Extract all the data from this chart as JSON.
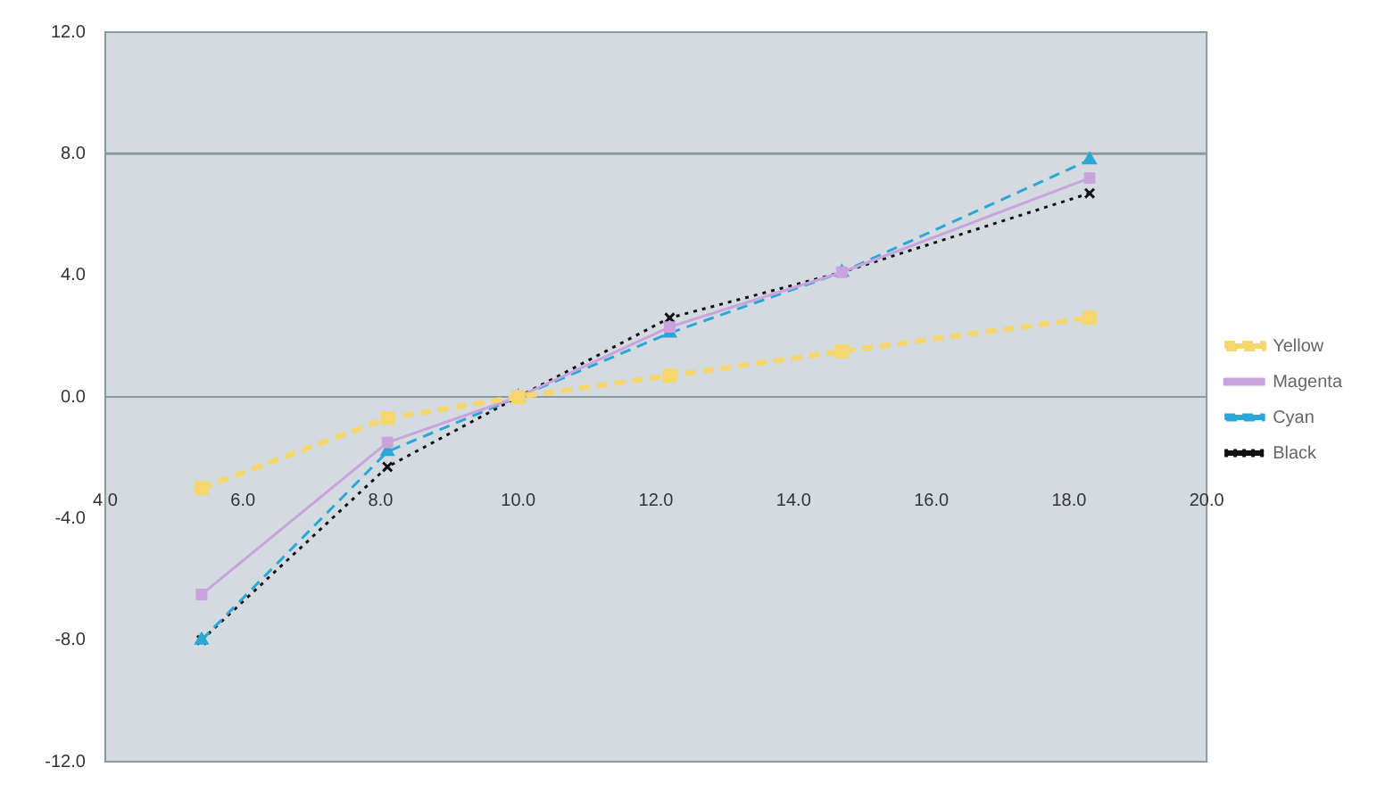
{
  "chart_data": {
    "type": "line",
    "legend": "right",
    "xlim": [
      4,
      20
    ],
    "xticks": [
      {
        "value": 4,
        "label": "4.0"
      },
      {
        "value": 6,
        "label": "6.0"
      },
      {
        "value": 8,
        "label": "8.0"
      },
      {
        "value": 10,
        "label": "10.0"
      },
      {
        "value": 12,
        "label": "12.0"
      },
      {
        "value": 14,
        "label": "14.0"
      },
      {
        "value": 16,
        "label": "16.0"
      },
      {
        "value": 18,
        "label": "18.0"
      },
      {
        "value": 20,
        "label": "20.0"
      }
    ],
    "ylim": [
      -12,
      12
    ],
    "yticks": [
      {
        "value": -12,
        "label": "-12.0"
      },
      {
        "value": -8,
        "label": "-8.0"
      },
      {
        "value": -4,
        "label": "-4.0"
      },
      {
        "value": 0,
        "label": "0.0"
      },
      {
        "value": 4,
        "label": "4.0"
      },
      {
        "value": 8,
        "label": "8.0"
      },
      {
        "value": 12,
        "label": "12.0"
      }
    ],
    "ref_lines": [
      {
        "axis": "y",
        "value": 8,
        "color": "#8a9aa3"
      }
    ],
    "x": [
      5.4,
      8.1,
      10,
      12.2,
      14.7,
      18.3
    ],
    "series": [
      {
        "name": "Yellow",
        "color": "#f5d76e",
        "values": [
          -3.0,
          -0.7,
          0,
          0.7,
          1.5,
          2.6
        ],
        "marker": "square",
        "line_style": "dashed"
      },
      {
        "name": "Magenta",
        "color": "#c9a3dd",
        "values": [
          -6.5,
          -1.5,
          0,
          2.3,
          4.1,
          7.2
        ],
        "marker": "square",
        "line_style": "solid"
      },
      {
        "name": "Cyan",
        "color": "#2aa7d6",
        "values": [
          -8.0,
          -1.8,
          0,
          2.1,
          4.1,
          7.8
        ],
        "marker": "triangle",
        "line_style": "dashed"
      },
      {
        "name": "Black",
        "color": "#111111",
        "values": [
          -8.0,
          -2.3,
          0,
          2.6,
          4.1,
          6.7
        ],
        "marker": "cross",
        "line_style": "dotted"
      }
    ]
  }
}
